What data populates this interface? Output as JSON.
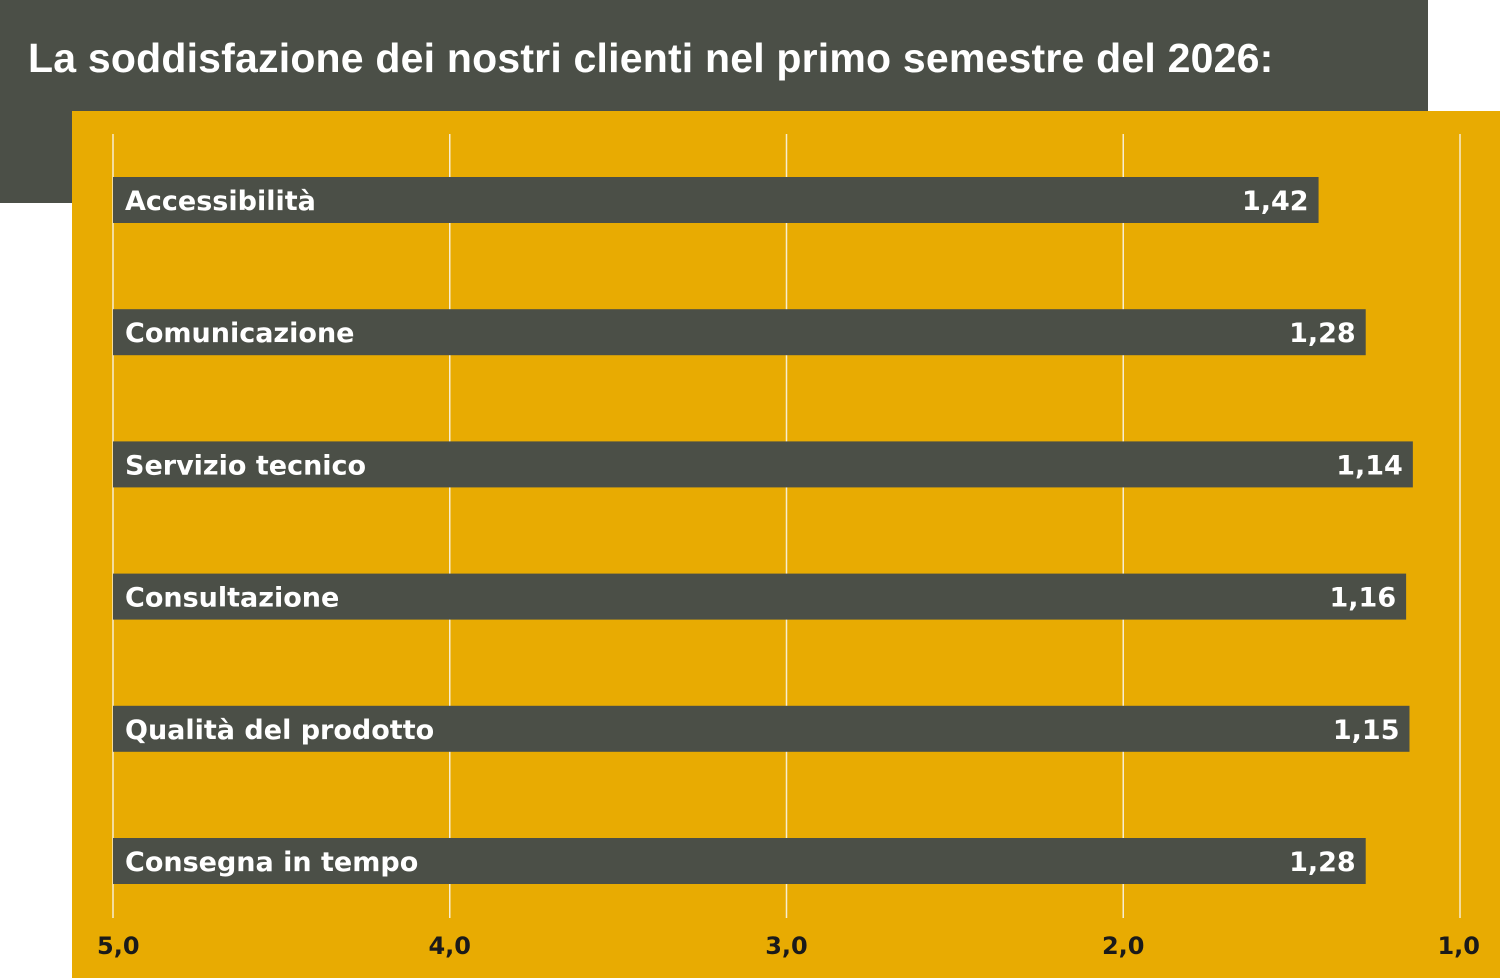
{
  "title": "La soddisfazione dei nostri clienti nel primo semestre del 2026:",
  "colors": {
    "header_background": "#4b4f47",
    "chart_background": "#e8ab02",
    "bar_fill": "#4b4f47",
    "bar_text": "#ffffff",
    "gridline": "#f7edd0",
    "axis_text": "#1a1a1a"
  },
  "chart_data": {
    "type": "bar",
    "orientation": "horizontal",
    "title": "La soddisfazione dei nostri clienti nel primo semestre del 2026:",
    "categories": [
      "Accessibilità",
      "Comunicazione",
      "Servizio tecnico",
      "Consultazione",
      "Qualità del prodotto",
      "Consegna in tempo"
    ],
    "values": [
      1.42,
      1.28,
      1.14,
      1.16,
      1.15,
      1.28
    ],
    "value_labels": [
      "1,42",
      "1,28",
      "1,14",
      "1,16",
      "1,15",
      "1,28"
    ],
    "xlim": [
      5.0,
      1.0
    ],
    "x_axis_reversed": true,
    "x_ticks": [
      5.0,
      4.0,
      3.0,
      2.0,
      1.0
    ],
    "x_tick_labels": [
      "5,0",
      "4,0",
      "3,0",
      "2,0",
      "1,0"
    ],
    "grid": true,
    "xlabel": "",
    "ylabel": ""
  }
}
